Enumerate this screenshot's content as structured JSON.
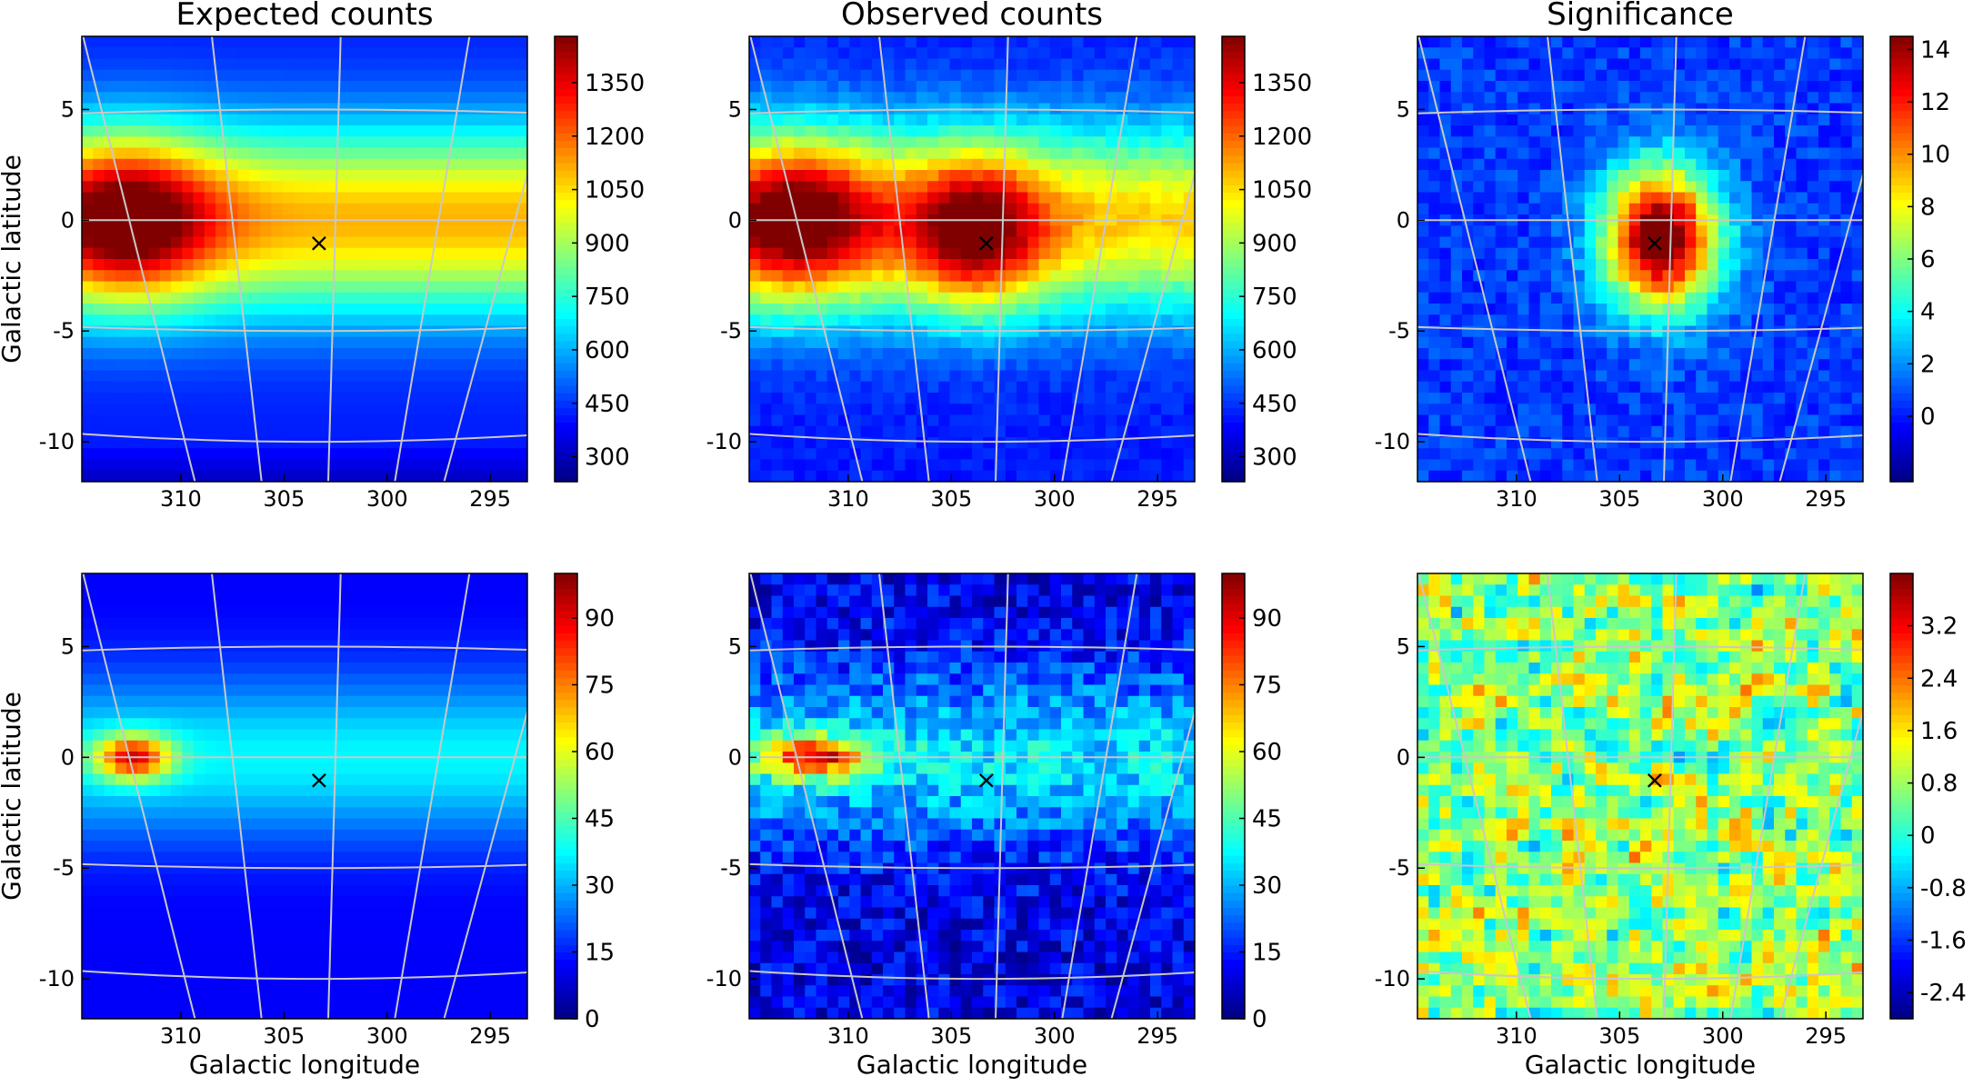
{
  "figure": {
    "xlabel": "Galactic longitude",
    "ylabel": "Galactic latitude"
  },
  "chart_data": [
    {
      "type": "heatmap",
      "title": "Expected counts",
      "xticks": [
        "310",
        "305",
        "300",
        "295"
      ],
      "yticks": [
        "5",
        "0",
        "-5",
        "-10"
      ],
      "colorbar_ticks": [
        "300",
        "450",
        "600",
        "750",
        "900",
        "1050",
        "1200",
        "1350"
      ],
      "colorbar_range": [
        230,
        1480
      ],
      "marker": {
        "symbol": "×",
        "l": 303.3,
        "b": -1.0
      },
      "show_xlabel": false,
      "show_ylabel": true
    },
    {
      "type": "heatmap",
      "title": "Observed counts",
      "xticks": [
        "310",
        "305",
        "300",
        "295"
      ],
      "yticks": [
        "5",
        "0",
        "-5",
        "-10"
      ],
      "colorbar_ticks": [
        "300",
        "450",
        "600",
        "750",
        "900",
        "1050",
        "1200",
        "1350"
      ],
      "colorbar_range": [
        230,
        1480
      ],
      "marker": {
        "symbol": "×",
        "l": 303.3,
        "b": -1.0
      },
      "show_xlabel": false,
      "show_ylabel": false
    },
    {
      "type": "heatmap",
      "title": "Significance",
      "xticks": [
        "310",
        "305",
        "300",
        "295"
      ],
      "yticks": [
        "5",
        "0",
        "-5",
        "-10"
      ],
      "colorbar_ticks": [
        "0",
        "2",
        "4",
        "6",
        "8",
        "10",
        "12",
        "14"
      ],
      "colorbar_range": [
        -2.5,
        14.5
      ],
      "marker": {
        "symbol": "×",
        "l": 303.3,
        "b": -1.0
      },
      "show_xlabel": false,
      "show_ylabel": false
    },
    {
      "type": "heatmap",
      "title": "",
      "xticks": [
        "310",
        "305",
        "300",
        "295"
      ],
      "yticks": [
        "5",
        "0",
        "-5",
        "-10"
      ],
      "colorbar_ticks": [
        "0",
        "15",
        "30",
        "45",
        "60",
        "75",
        "90"
      ],
      "colorbar_range": [
        0,
        100
      ],
      "marker": {
        "symbol": "×",
        "l": 303.3,
        "b": -1.0
      },
      "show_xlabel": true,
      "show_ylabel": true
    },
    {
      "type": "heatmap",
      "title": "",
      "xticks": [
        "310",
        "305",
        "300",
        "295"
      ],
      "yticks": [
        "5",
        "0",
        "-5",
        "-10"
      ],
      "colorbar_ticks": [
        "0",
        "15",
        "30",
        "45",
        "60",
        "75",
        "90"
      ],
      "colorbar_range": [
        0,
        100
      ],
      "marker": {
        "symbol": "×",
        "l": 303.3,
        "b": -1.0
      },
      "show_xlabel": true,
      "show_ylabel": false
    },
    {
      "type": "heatmap",
      "title": "",
      "xticks": [
        "310",
        "305",
        "300",
        "295"
      ],
      "yticks": [
        "5",
        "0",
        "-5",
        "-10"
      ],
      "colorbar_ticks": [
        "-2.4",
        "-1.6",
        "-0.8",
        "0",
        "0.8",
        "1.6",
        "2.4",
        "3.2"
      ],
      "colorbar_range": [
        -2.8,
        4.0
      ],
      "marker": {
        "symbol": "×",
        "l": 303.3,
        "b": -1.0
      },
      "show_xlabel": true,
      "show_ylabel": false
    }
  ]
}
